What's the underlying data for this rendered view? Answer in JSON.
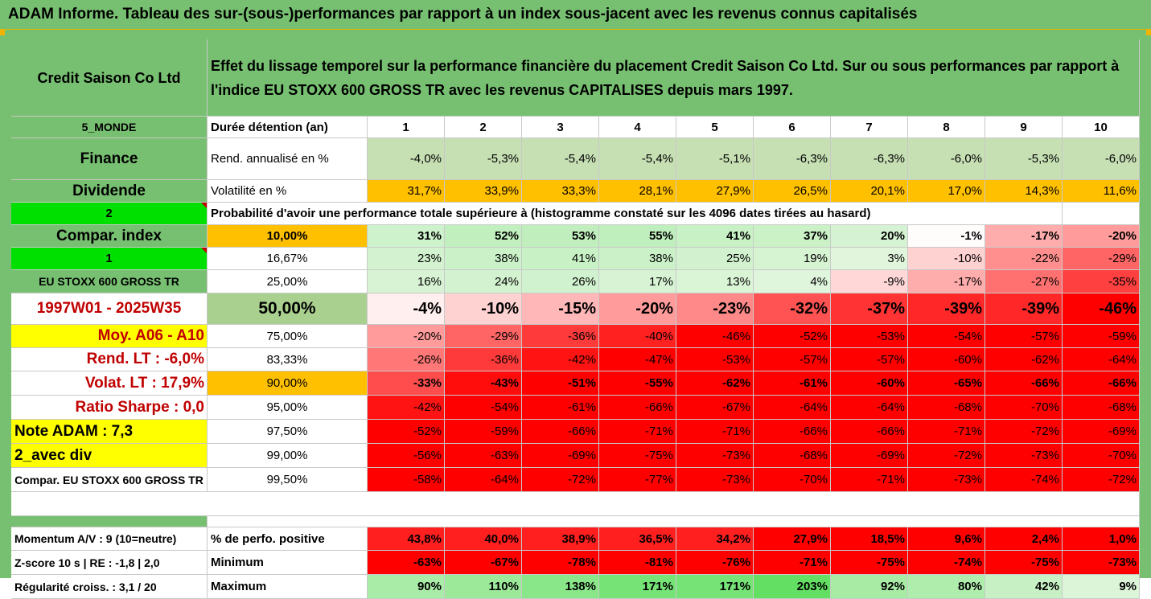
{
  "banner": "ADAM Informe. Tableau des sur-(sous-)performances par rapport à un index sous-jacent avec les revenus connus capitalisés",
  "company": "Credit Saison Co Ltd",
  "description": "Effet du lissage temporel sur la performance financière du placement Credit Saison Co Ltd. Sur ou sous performances par rapport à l'indice EU STOXX 600 GROSS TR avec les revenus CAPITALISES depuis mars 1997.",
  "duration_label": "Durée détention (an)",
  "years": [
    "1",
    "2",
    "3",
    "4",
    "5",
    "6",
    "7",
    "8",
    "9",
    "10"
  ],
  "side": {
    "region": "5_MONDE",
    "sector": "Finance",
    "dividend": "Dividende",
    "two": "2",
    "compar_index": "Compar. index",
    "one": "1",
    "index_name": "EU STOXX 600 GROSS TR",
    "period": "1997W01 - 2025W35",
    "moy": "Moy. A06 - A10",
    "rend_lt": "Rend. LT :   -6,0%",
    "volat_lt": "Volat. LT :   17,9%",
    "sharpe": "Ratio Sharpe :   0,0",
    "note": "Note ADAM : 7,3",
    "avec_div": "2_avec div",
    "compar_full": "Compar. EU STOXX 600 GROSS TR",
    "momentum": "Momentum A/V : 9 (10=neutre)",
    "zscore": "Z-score 10 s  |  RE : -1,8  |  2,0",
    "regularite": "Régularité croiss. : 3,1 / 20"
  },
  "rend_label": "Rend. annualisé en %",
  "rend": [
    "-4,0%",
    "-5,3%",
    "-5,4%",
    "-5,4%",
    "-5,1%",
    "-6,3%",
    "-6,3%",
    "-6,0%",
    "-5,3%",
    "-6,0%"
  ],
  "vol_label": "Volatilité en %",
  "vol": [
    "31,7%",
    "33,9%",
    "33,3%",
    "28,1%",
    "27,9%",
    "26,5%",
    "20,1%",
    "17,0%",
    "14,3%",
    "11,6%"
  ],
  "prob_label": "Probabilité d'avoir une performance totale supérieure à (histogramme constaté sur les 4096 dates tirées au hasard)",
  "quantiles": [
    {
      "q": "10,00%",
      "v": [
        "31%",
        "52%",
        "53%",
        "55%",
        "41%",
        "37%",
        "20%",
        "-1%",
        "-17%",
        "-20%"
      ]
    },
    {
      "q": "16,67%",
      "v": [
        "23%",
        "38%",
        "41%",
        "38%",
        "25%",
        "19%",
        "3%",
        "-10%",
        "-22%",
        "-29%"
      ]
    },
    {
      "q": "25,00%",
      "v": [
        "16%",
        "24%",
        "26%",
        "17%",
        "13%",
        "4%",
        "-9%",
        "-17%",
        "-27%",
        "-35%"
      ]
    },
    {
      "q": "50,00%",
      "v": [
        "-4%",
        "-10%",
        "-15%",
        "-20%",
        "-23%",
        "-32%",
        "-37%",
        "-39%",
        "-39%",
        "-46%"
      ]
    },
    {
      "q": "75,00%",
      "v": [
        "-20%",
        "-29%",
        "-36%",
        "-40%",
        "-46%",
        "-52%",
        "-53%",
        "-54%",
        "-57%",
        "-59%"
      ]
    },
    {
      "q": "83,33%",
      "v": [
        "-26%",
        "-36%",
        "-42%",
        "-47%",
        "-53%",
        "-57%",
        "-57%",
        "-60%",
        "-62%",
        "-64%"
      ]
    },
    {
      "q": "90,00%",
      "v": [
        "-33%",
        "-43%",
        "-51%",
        "-55%",
        "-62%",
        "-61%",
        "-60%",
        "-65%",
        "-66%",
        "-66%"
      ]
    },
    {
      "q": "95,00%",
      "v": [
        "-42%",
        "-54%",
        "-61%",
        "-66%",
        "-67%",
        "-64%",
        "-64%",
        "-68%",
        "-70%",
        "-68%"
      ]
    },
    {
      "q": "97,50%",
      "v": [
        "-52%",
        "-59%",
        "-66%",
        "-71%",
        "-71%",
        "-66%",
        "-66%",
        "-71%",
        "-72%",
        "-69%"
      ]
    },
    {
      "q": "99,00%",
      "v": [
        "-56%",
        "-63%",
        "-69%",
        "-75%",
        "-73%",
        "-68%",
        "-69%",
        "-72%",
        "-73%",
        "-70%"
      ]
    },
    {
      "q": "99,50%",
      "v": [
        "-58%",
        "-64%",
        "-72%",
        "-77%",
        "-73%",
        "-70%",
        "-71%",
        "-73%",
        "-74%",
        "-72%"
      ]
    }
  ],
  "pos_label": "% de perfo. positive",
  "pos": [
    "43,8%",
    "40,0%",
    "38,9%",
    "36,5%",
    "34,2%",
    "27,9%",
    "18,5%",
    "9,6%",
    "2,4%",
    "1,0%"
  ],
  "min_label": "Minimum",
  "min": [
    "-63%",
    "-67%",
    "-78%",
    "-81%",
    "-76%",
    "-71%",
    "-75%",
    "-74%",
    "-75%",
    "-73%"
  ],
  "max_label": "Maximum",
  "max": [
    "90%",
    "110%",
    "138%",
    "171%",
    "171%",
    "203%",
    "92%",
    "80%",
    "42%",
    "9%"
  ],
  "colors": {
    "header_green": "#77c071",
    "pale_green": "#c6e0b4",
    "orange": "#ffc000",
    "yellow": "#ffff00",
    "bright_green": "#00e000",
    "red": "#ff0000",
    "dark_red_text": "#c00000"
  }
}
